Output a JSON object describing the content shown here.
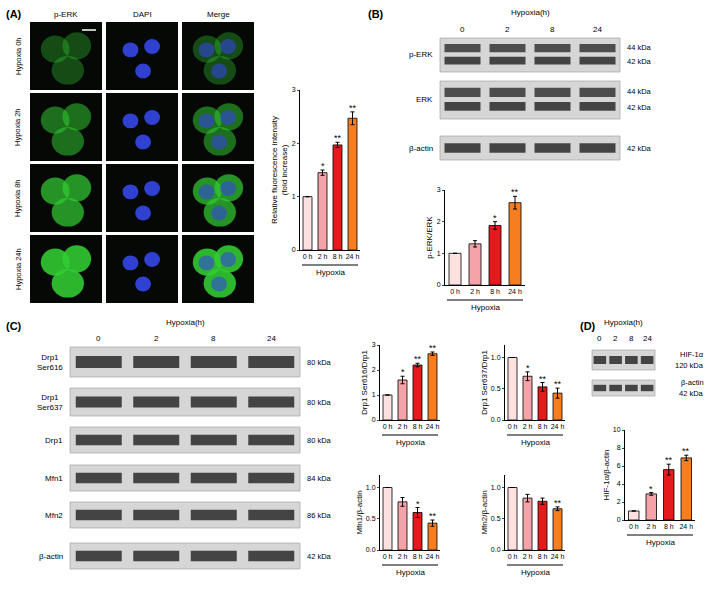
{
  "chart_data": [
    {
      "type": "bar",
      "y_label": [
        "Relative fluorescence intensity",
        "(fold increase)"
      ],
      "x_label": "Hypoxia",
      "categories": [
        "0 h",
        "2 h",
        "8 h",
        "24 h"
      ],
      "values": [
        1,
        1.45,
        1.97,
        2.47
      ],
      "errors": [
        0,
        0.05,
        0.05,
        0.12
      ],
      "significance": [
        null,
        "*",
        "**",
        "**"
      ],
      "colors": [
        "#fde0e0",
        "#f4a3a8",
        "#e41a1c",
        "#f57f20"
      ],
      "ylim": [
        0,
        3
      ],
      "yticks": [
        0,
        1,
        2,
        3
      ],
      "grid": false
    },
    {
      "type": "bar",
      "y_label": "p-ERK/ERK",
      "x_label": "Hypoxia",
      "categories": [
        "0 h",
        "2 h",
        "8 h",
        "24 h"
      ],
      "values": [
        1,
        1.3,
        1.88,
        2.6
      ],
      "errors": [
        0,
        0.1,
        0.12,
        0.2
      ],
      "significance": [
        null,
        null,
        "*",
        "**"
      ],
      "colors": [
        "#fde0e0",
        "#f4a3a8",
        "#e41a1c",
        "#f57f20"
      ],
      "ylim": [
        0,
        3
      ],
      "yticks": [
        0,
        1,
        2,
        3
      ],
      "grid": false
    },
    {
      "type": "bar",
      "y_label": "Drp1 Ser616/Drp1",
      "x_label": "Hypoxia",
      "categories": [
        "0 h",
        "2 h",
        "8 h",
        "24 h"
      ],
      "values": [
        1,
        1.6,
        2.2,
        2.65
      ],
      "errors": [
        0,
        0.15,
        0.07,
        0.07
      ],
      "significance": [
        null,
        "*",
        "**",
        "**"
      ],
      "colors": [
        "#fde0e0",
        "#f4a3a8",
        "#e41a1c",
        "#f57f20"
      ],
      "ylim": [
        0,
        3
      ],
      "yticks": [
        0,
        1,
        2,
        3
      ],
      "grid": false
    },
    {
      "type": "bar",
      "y_label": "Drp1 Ser637/Drp1",
      "x_label": "Hypoxia",
      "categories": [
        "0 h",
        "2 h",
        "8 h",
        "24 h"
      ],
      "values": [
        1,
        0.7,
        0.53,
        0.43
      ],
      "errors": [
        0,
        0.07,
        0.07,
        0.08
      ],
      "significance": [
        null,
        "*",
        "**",
        "**"
      ],
      "colors": [
        "#fde0e0",
        "#f4a3a8",
        "#e41a1c",
        "#f57f20"
      ],
      "ylim": [
        0,
        1.2
      ],
      "yticks": [
        {
          "value": 0,
          "label": "0.0"
        },
        {
          "value": 0.5,
          "label": "0.5"
        },
        {
          "value": 1,
          "label": "1.0"
        }
      ],
      "grid": false
    },
    {
      "type": "bar",
      "y_label": "Mfn1/β-actin",
      "x_label": "Hypoxia",
      "categories": [
        "0 h",
        "2 h",
        "8 h",
        "24 h"
      ],
      "values": [
        1,
        0.77,
        0.6,
        0.43
      ],
      "errors": [
        0,
        0.07,
        0.08,
        0.05
      ],
      "significance": [
        null,
        null,
        "*",
        "**"
      ],
      "colors": [
        "#fde0e0",
        "#f4a3a8",
        "#e41a1c",
        "#f57f20"
      ],
      "ylim": [
        0,
        1.2
      ],
      "yticks": [
        {
          "value": 0,
          "label": "0.0"
        },
        {
          "value": 0.5,
          "label": "0.5"
        },
        {
          "value": 1,
          "label": "1.0"
        }
      ],
      "grid": false
    },
    {
      "type": "bar",
      "y_label": "Mfn2/β-actin",
      "x_label": "Hypoxia",
      "categories": [
        "0 h",
        "2 h",
        "8 h",
        "24 h"
      ],
      "values": [
        1,
        0.83,
        0.78,
        0.66
      ],
      "errors": [
        0,
        0.06,
        0.05,
        0.03
      ],
      "significance": [
        null,
        null,
        null,
        "**"
      ],
      "colors": [
        "#fde0e0",
        "#f4a3a8",
        "#e41a1c",
        "#f57f20"
      ],
      "ylim": [
        0,
        1.2
      ],
      "yticks": [
        {
          "value": 0,
          "label": "0.0"
        },
        {
          "value": 0.5,
          "label": "0.5"
        },
        {
          "value": 1,
          "label": "1.0"
        }
      ],
      "grid": false
    },
    {
      "type": "bar",
      "y_label": "HIF-1α/β-actin",
      "x_label": "Hypoxia",
      "categories": [
        "0 h",
        "2 h",
        "8 h",
        "24 h"
      ],
      "values": [
        1,
        2.9,
        5.6,
        6.9
      ],
      "errors": [
        0,
        0.15,
        0.6,
        0.3
      ],
      "significance": [
        null,
        "*",
        "**",
        "**"
      ],
      "colors": [
        "#fde0e0",
        "#f4a3a8",
        "#e41a1c",
        "#f57f20"
      ],
      "ylim": [
        0,
        10
      ],
      "yticks": [
        0,
        2,
        4,
        6,
        8,
        10
      ],
      "grid": false
    }
  ],
  "figure": {
    "panels": [
      {
        "label": "(A)",
        "columns": [
          "p-ERK",
          "DAPI",
          "Merge"
        ],
        "rows": [
          "Hypoxia 0h",
          "Hypoxia 2h",
          "Hypoxia 8h",
          "Hypoxia 24h"
        ]
      },
      {
        "label": "(B)",
        "header": "Hypoxia(h)",
        "lanes": [
          "0",
          "2",
          "8",
          "24"
        ],
        "rows": [
          {
            "name": [
              "p-ERK"
            ],
            "sizes": [
              "44 kDa",
              "42 kDa"
            ]
          },
          {
            "name": [
              "ERK"
            ],
            "sizes": [
              "44 kDa",
              "42 kDa"
            ]
          },
          {
            "name": [
              "β-actin"
            ],
            "sizes": [
              "42 kDa"
            ]
          }
        ]
      },
      {
        "label": "(C)",
        "header": "Hypoxia(h)",
        "lanes": [
          "0",
          "2",
          "8",
          "24"
        ],
        "rows": [
          {
            "name": [
              "Drp1",
              "Ser616"
            ],
            "sizes": [
              "80 kDa"
            ]
          },
          {
            "name": [
              "Drp1",
              "Ser637"
            ],
            "sizes": [
              "80 kDa"
            ]
          },
          {
            "name": [
              "Drp1"
            ],
            "sizes": [
              "80 kDa"
            ]
          },
          {
            "name": [
              "Mfn1"
            ],
            "sizes": [
              "84 kDa"
            ]
          },
          {
            "name": [
              "Mfn2"
            ],
            "sizes": [
              "86 kDa"
            ]
          },
          {
            "name": [
              "β-actin"
            ],
            "sizes": [
              "42 kDa"
            ]
          }
        ]
      },
      {
        "label": "(D)",
        "header": "Hypoxia(h)",
        "lanes": [
          "0",
          "2",
          "8",
          "24"
        ],
        "rows": [
          {
            "name": [
              "HIF-1α"
            ],
            "sizes": [
              "120 kDa"
            ]
          },
          {
            "name": [
              "β-actin"
            ],
            "sizes": [
              "42 kDa"
            ]
          }
        ]
      }
    ]
  }
}
